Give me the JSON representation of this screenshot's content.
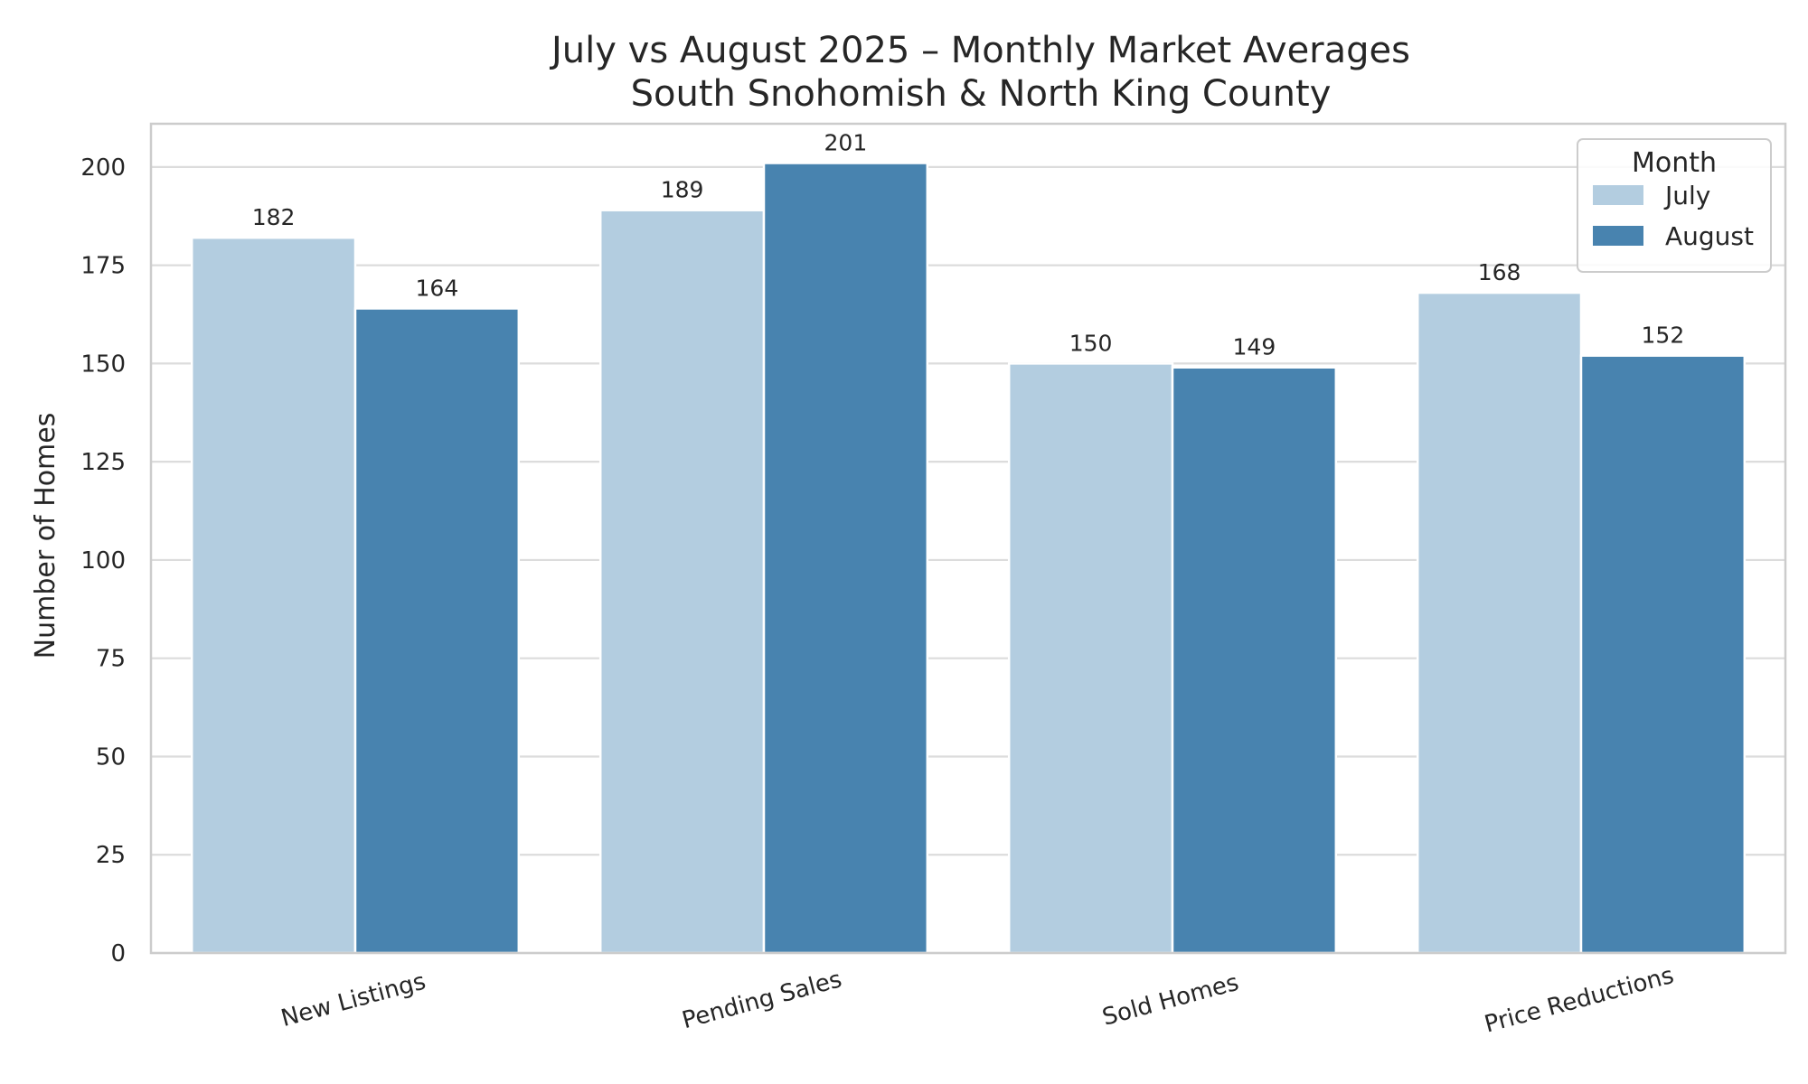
{
  "chart_data": {
    "type": "bar",
    "title": "July vs August 2025 – Monthly Market Averages",
    "subtitle": "South Snohomish & North King County",
    "xlabel": "",
    "ylabel": "Number of Homes",
    "categories": [
      "New Listings",
      "Pending Sales",
      "Sold Homes",
      "Price Reductions"
    ],
    "series": [
      {
        "name": "July",
        "values": [
          182,
          189,
          150,
          168
        ],
        "color": "#b3cde0"
      },
      {
        "name": "August",
        "values": [
          164,
          201,
          149,
          152
        ],
        "color": "#4883af"
      }
    ],
    "ylim": [
      0,
      211
    ],
    "yticks": [
      0,
      25,
      50,
      75,
      100,
      125,
      150,
      175,
      200
    ],
    "grid": true,
    "legend": {
      "title": "Month",
      "placement": "top-right"
    }
  }
}
